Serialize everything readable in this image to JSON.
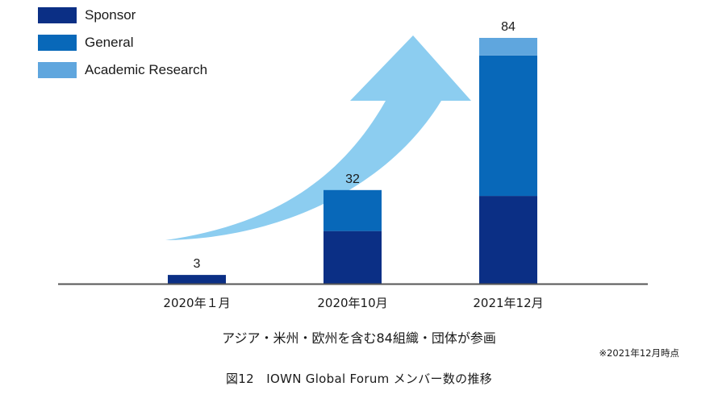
{
  "chart_data": {
    "type": "bar",
    "stacked": true,
    "categories": [
      "2020年１月",
      "2020年10月",
      "2021年12月"
    ],
    "series": [
      {
        "name": "Sponsor",
        "color": "#0b2f85",
        "values": [
          3,
          18,
          30
        ]
      },
      {
        "name": "General",
        "color": "#0868b9",
        "values": [
          0,
          14,
          48
        ]
      },
      {
        "name": "Academic Research",
        "color": "#5fa6de",
        "values": [
          0,
          0,
          6
        ]
      }
    ],
    "totals": [
      3,
      32,
      84
    ],
    "ylim": [
      0,
      84
    ],
    "legend_position": "top-left",
    "grid": false,
    "decoration": "rising-arrow",
    "arrow_color": "#8ccdf0",
    "axis_color": "#555555"
  },
  "subtitle": "アジア・米州・欧州を含む84組織・団体が参画",
  "note": "※2021年12月時点",
  "caption": "図12　IOWN Global Forum メンバー数の推移"
}
